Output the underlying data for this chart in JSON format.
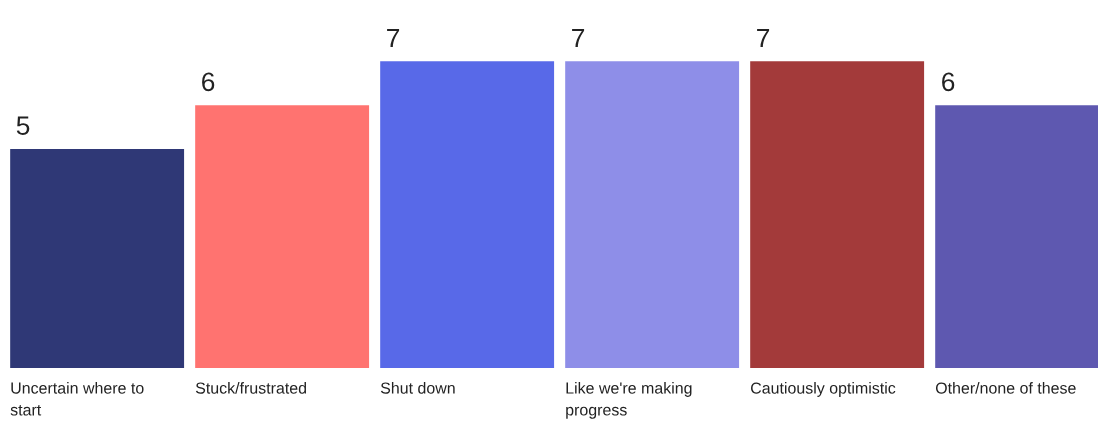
{
  "chart_data": {
    "type": "bar",
    "categories": [
      "Uncertain where to\nstart",
      "Stuck/frustrated",
      "Shut down",
      "Like we're making\nprogress",
      "Cautiously optimistic",
      "Other/none of these"
    ],
    "values": [
      5,
      6,
      7,
      7,
      7,
      6
    ],
    "colors": [
      "#2f3876",
      "#ff7370",
      "#5869e8",
      "#8e8ee8",
      "#a33a3a",
      "#5e58b0"
    ],
    "data_labels": true,
    "tick_labels": "x"
  }
}
